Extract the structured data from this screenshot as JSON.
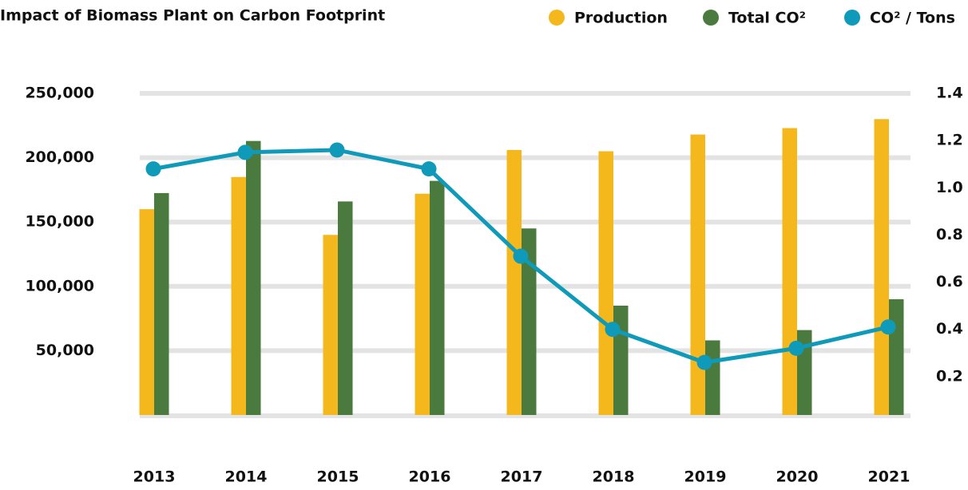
{
  "chart_data": {
    "type": "bar_line",
    "title": "Impact of Biomass Plant on Carbon Footprint",
    "categories": [
      "2013",
      "2014",
      "2015",
      "2016",
      "2017",
      "2018",
      "2019",
      "2020",
      "2021"
    ],
    "series": [
      {
        "name": "Production",
        "color": "#f5b81c",
        "type": "bar",
        "values": [
          160000,
          185000,
          140000,
          172000,
          206000,
          205000,
          218000,
          223000,
          230000
        ]
      },
      {
        "name": "Total CO²",
        "color": "#4a7a3e",
        "type": "bar",
        "values": [
          172500,
          213000,
          166000,
          182000,
          145000,
          85000,
          58000,
          66000,
          90000
        ]
      },
      {
        "name": "CO² / Tons",
        "color": "#0e9ab8",
        "type": "line",
        "axis": "y2",
        "values": [
          1.08,
          1.15,
          1.16,
          1.08,
          0.71,
          0.4,
          0.26,
          0.32,
          0.41
        ]
      }
    ],
    "ylim": [
      0,
      250000
    ],
    "yticks": [
      {
        "value": 50000,
        "label": "50,000"
      },
      {
        "value": 100000,
        "label": "100,000"
      },
      {
        "value": 150000,
        "label": "150,000"
      },
      {
        "value": 200000,
        "label": "200,000"
      },
      {
        "value": 250000,
        "label": "250,000"
      }
    ],
    "y2lim": [
      0,
      1.4
    ],
    "y2ticks": [
      {
        "value": 0.2,
        "label": "0.2"
      },
      {
        "value": 0.4,
        "label": "0.4"
      },
      {
        "value": 0.6,
        "label": "0.6"
      },
      {
        "value": 0.8,
        "label": "0.8"
      },
      {
        "value": 1.0,
        "label": "1.0"
      },
      {
        "value": 1.2,
        "label": "1.2"
      },
      1.4
    ],
    "grid": true,
    "legend": "top-right"
  }
}
